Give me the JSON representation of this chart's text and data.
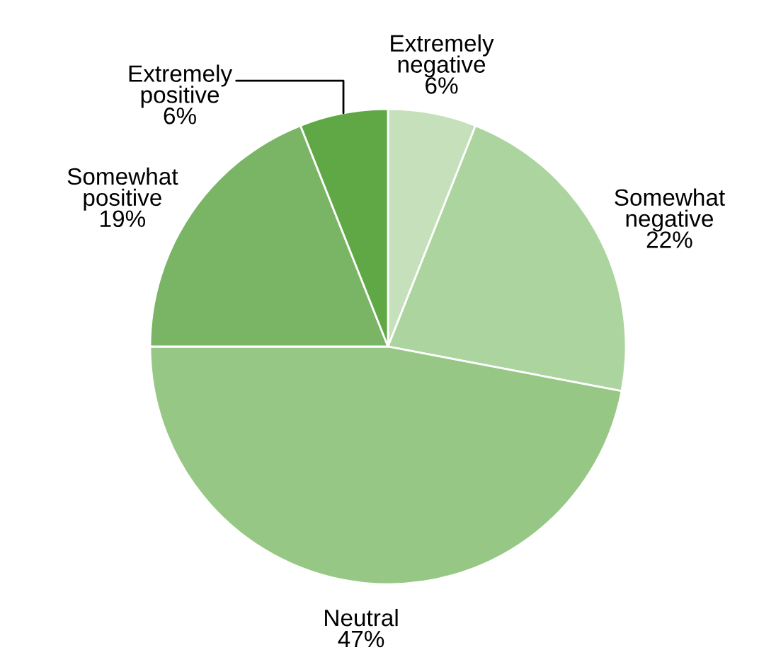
{
  "chart_data": {
    "type": "pie",
    "categories": [
      "Extremely negative",
      "Somewhat negative",
      "Neutral",
      "Somewhat positive",
      "Extremely positive"
    ],
    "values": [
      6,
      22,
      47,
      19,
      6
    ],
    "value_labels": [
      "6%",
      "22%",
      "47%",
      "19%",
      "6%"
    ],
    "colors": [
      "#c5e0bb",
      "#acd49e",
      "#97c785",
      "#7ab565",
      "#5fa845"
    ]
  }
}
